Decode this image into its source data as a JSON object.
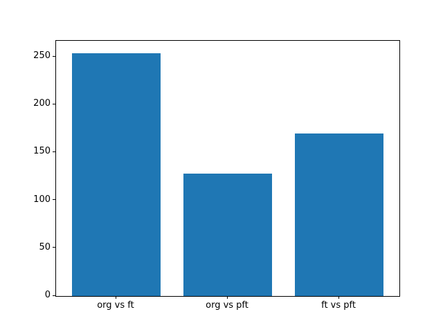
{
  "figure": {
    "background": "#ffffff",
    "spine_color": "#000000",
    "text_color": "#000000"
  },
  "chart_data": {
    "type": "bar",
    "title": "",
    "xlabel": "",
    "ylabel": "",
    "categories": [
      "org vs ft",
      "org vs pft",
      "ft vs pft"
    ],
    "values": [
      254,
      128,
      170
    ],
    "bar_color": "#1f77b4",
    "bar_width_fraction": 0.8,
    "ylim": [
      0,
      266.7
    ],
    "yticks": [
      0,
      50,
      100,
      150,
      200,
      250
    ],
    "grid": false,
    "legend": null
  }
}
